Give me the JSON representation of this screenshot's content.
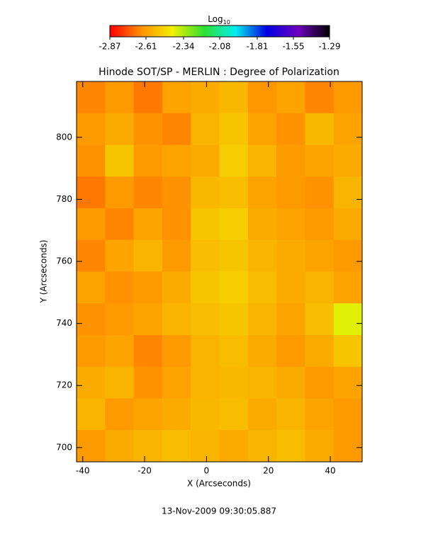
{
  "chart_data": {
    "type": "heatmap",
    "title": "Hinode SOT/SP - MERLIN : Degree of Polarization",
    "colorbar_label": "Log",
    "colorbar_label_sub": "10",
    "colorbar_ticks": [
      -2.87,
      -2.61,
      -2.34,
      -2.08,
      -1.81,
      -1.55,
      -1.29
    ],
    "zlim": [
      -2.87,
      -1.29
    ],
    "colorscale": [
      "#ff0000",
      "#ff9000",
      "#f0f000",
      "#30e030",
      "#00f0f0",
      "#0000e0",
      "#7000c0",
      "#000000"
    ],
    "xlabel": "X (Arcseconds)",
    "ylabel": "Y (Arcseconds)",
    "xlim": [
      -42,
      50.3
    ],
    "ylim": [
      695.4,
      818
    ],
    "xticks": [
      -40,
      -20,
      0,
      20,
      40
    ],
    "yticks": [
      700,
      720,
      740,
      760,
      780,
      800
    ],
    "z": [
      [
        -2.66,
        -2.62,
        -2.68,
        -2.6,
        -2.58,
        -2.55,
        -2.63,
        -2.6,
        -2.66,
        -2.62
      ],
      [
        -2.62,
        -2.58,
        -2.64,
        -2.66,
        -2.56,
        -2.52,
        -2.6,
        -2.64,
        -2.55,
        -2.6
      ],
      [
        -2.64,
        -2.52,
        -2.62,
        -2.6,
        -2.58,
        -2.5,
        -2.56,
        -2.62,
        -2.6,
        -2.58
      ],
      [
        -2.68,
        -2.62,
        -2.66,
        -2.64,
        -2.55,
        -2.54,
        -2.6,
        -2.62,
        -2.64,
        -2.56
      ],
      [
        -2.62,
        -2.66,
        -2.6,
        -2.64,
        -2.52,
        -2.5,
        -2.58,
        -2.6,
        -2.62,
        -2.58
      ],
      [
        -2.66,
        -2.6,
        -2.56,
        -2.62,
        -2.54,
        -2.52,
        -2.56,
        -2.58,
        -2.6,
        -2.62
      ],
      [
        -2.6,
        -2.64,
        -2.62,
        -2.58,
        -2.52,
        -2.5,
        -2.54,
        -2.58,
        -2.56,
        -2.6
      ],
      [
        -2.64,
        -2.62,
        -2.6,
        -2.56,
        -2.54,
        -2.52,
        -2.56,
        -2.6,
        -2.54,
        -2.4
      ],
      [
        -2.62,
        -2.6,
        -2.66,
        -2.62,
        -2.56,
        -2.54,
        -2.58,
        -2.62,
        -2.58,
        -2.52
      ],
      [
        -2.58,
        -2.56,
        -2.64,
        -2.6,
        -2.56,
        -2.55,
        -2.56,
        -2.58,
        -2.62,
        -2.6
      ],
      [
        -2.56,
        -2.62,
        -2.6,
        -2.58,
        -2.55,
        -2.54,
        -2.58,
        -2.56,
        -2.6,
        -2.62
      ],
      [
        -2.62,
        -2.58,
        -2.56,
        -2.54,
        -2.56,
        -2.58,
        -2.56,
        -2.54,
        -2.58,
        -2.62
      ]
    ],
    "timestamp": "13-Nov-2009 09:30:05.887"
  }
}
